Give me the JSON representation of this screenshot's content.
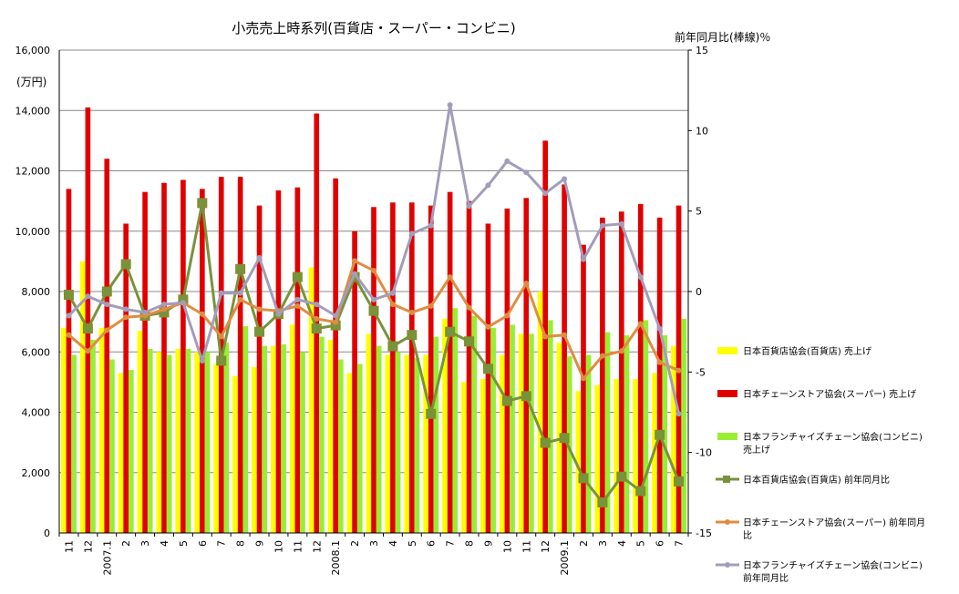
{
  "chart_data": {
    "type": "bar",
    "title": "小売売上時系列(百貨店・スーパー・コンビニ)",
    "y_left_unit": "(万円)",
    "y_right_label": "前年同月比(棒線)％",
    "y_left_range": [
      0,
      16000
    ],
    "y_left_ticks": [
      "0",
      "2,000",
      "4,000",
      "6,000",
      "8,000",
      "10,000",
      "12,000",
      "14,000",
      "16,000"
    ],
    "y_right_range": [
      -15,
      15
    ],
    "y_right_ticks": [
      "-15",
      "-10",
      "-5",
      "0",
      "5",
      "10",
      "15"
    ],
    "grid": "horizontal",
    "legend_position": "right",
    "categories": [
      "11",
      "12",
      "2007.1",
      "2",
      "3",
      "4",
      "5",
      "6",
      "7",
      "8",
      "9",
      "10",
      "11",
      "12",
      "2008.1",
      "2",
      "3",
      "4",
      "5",
      "6",
      "7",
      "8",
      "9",
      "10",
      "11",
      "12",
      "2009.1",
      "2",
      "3",
      "4",
      "5",
      "6",
      "7"
    ],
    "bar_series": [
      {
        "name": "日本百貨店協会(百貨店) 売上げ",
        "color": "#ffff00",
        "values": [
          6800,
          9000,
          6800,
          5300,
          6700,
          6000,
          6100,
          6000,
          5600,
          5200,
          5500,
          6200,
          6900,
          8800,
          6400,
          5300,
          6600,
          5900,
          5900,
          5900,
          7100,
          5000,
          5100,
          5900,
          6600,
          8000,
          6300,
          4700,
          4900,
          5100,
          5100,
          5300,
          6200
        ]
      },
      {
        "name": "日本チェーンストア協会(スーパー) 売上げ",
        "color": "#e00000",
        "values": [
          11400,
          14100,
          12400,
          10250,
          11300,
          11600,
          11700,
          11400,
          11800,
          11800,
          10850,
          11350,
          11450,
          13900,
          11750,
          10000,
          10800,
          10950,
          10950,
          10850,
          11300,
          11000,
          10250,
          10750,
          11100,
          13000,
          11550,
          9550,
          10450,
          10650,
          10900,
          10450,
          10850
        ]
      },
      {
        "name": "日本フランチャイズチェーン協会(コンビニ) 売上げ",
        "color": "#99ee33",
        "values": [
          5900,
          6400,
          5750,
          5400,
          6100,
          5900,
          6100,
          6000,
          6300,
          6850,
          6200,
          6250,
          6000,
          6500,
          5750,
          5600,
          6200,
          6000,
          5800,
          6500,
          7450,
          7200,
          6800,
          6900,
          6600,
          7050,
          5850,
          5900,
          6650,
          6550,
          7050,
          6550,
          7100
        ]
      }
    ],
    "line_series": [
      {
        "name": "日本百貨店協会(百貨店) 前年同月比",
        "color": "#77933c",
        "values": [
          -0.2,
          -2.3,
          0.0,
          1.7,
          -1.5,
          -1.3,
          -0.5,
          5.5,
          -4.3,
          1.4,
          -2.5,
          -1.4,
          0.9,
          -2.3,
          -2.1,
          0.9,
          -1.2,
          -3.4,
          -2.7,
          -7.6,
          -2.5,
          -3.1,
          -4.8,
          -6.8,
          -6.5,
          -9.4,
          -9.1,
          -11.6,
          -13.1,
          -11.5,
          -12.4,
          -8.9,
          -11.8
        ]
      },
      {
        "name": "日本チェーンストア協会(スーパー) 前年同月比",
        "color": "#e08c40",
        "values": [
          -2.7,
          -3.7,
          -2.4,
          -1.6,
          -1.5,
          -1.1,
          -0.7,
          -1.4,
          -2.8,
          -0.5,
          -1.1,
          -1.2,
          -0.9,
          -1.7,
          -1.9,
          1.9,
          1.3,
          -0.8,
          -1.3,
          -0.9,
          0.9,
          -1.0,
          -2.2,
          -1.5,
          0.5,
          -2.8,
          -2.7,
          -5.4,
          -4.0,
          -3.7,
          -2.0,
          -4.4,
          -4.9
        ]
      },
      {
        "name": "日本フランチャイズチェーン協会(コンビニ) 前年同月比",
        "color": "#a39dbb",
        "values": [
          -1.5,
          -0.3,
          -0.8,
          -1.1,
          -1.3,
          -0.8,
          -0.7,
          -4.3,
          -0.1,
          -0.1,
          2.1,
          -1.4,
          -0.5,
          -0.8,
          -1.5,
          1.1,
          -0.5,
          -0.1,
          3.6,
          4.1,
          11.6,
          5.3,
          6.6,
          8.1,
          7.4,
          6.1,
          7.0,
          2.0,
          4.1,
          4.2,
          0.9,
          -2.3,
          -7.6
        ]
      }
    ]
  }
}
